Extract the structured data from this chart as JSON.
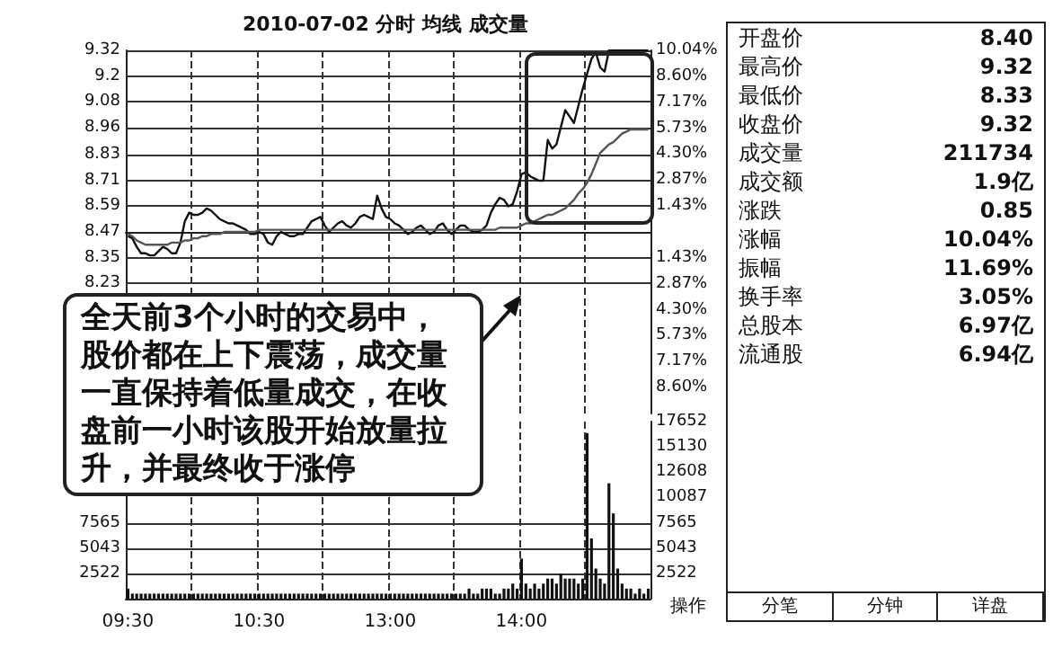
{
  "chart_data": [
    {
      "type": "line",
      "title": "2010-07-02 分时 均线 成交量",
      "annotations": [
        "全天前3个小时的交易中，股价都在上下震荡，成交量一直保持着低量成交，在收盘前一小时该股开始放量拉升，并最终收于涨停"
      ],
      "categories": [
        null,
        null,
        null,
        null,
        null,
        null,
        null,
        null,
        null,
        null,
        null,
        null,
        null,
        null,
        null,
        null,
        null,
        null,
        null,
        null,
        null,
        null,
        null,
        null,
        null,
        null,
        null,
        null,
        null,
        null,
        null,
        null,
        null,
        null,
        null,
        null,
        null,
        null,
        null,
        null,
        null,
        null,
        null,
        null,
        null,
        null,
        null,
        null,
        null,
        null,
        null,
        null,
        null,
        null,
        null,
        null,
        null,
        null,
        null,
        null,
        null,
        null,
        null,
        null,
        null,
        null,
        null,
        null,
        null,
        null,
        null,
        null,
        null,
        null,
        null,
        null,
        null,
        null,
        null,
        null,
        null,
        null,
        null,
        null,
        null,
        null,
        null,
        null,
        null,
        null,
        null,
        null,
        null,
        null,
        null,
        null,
        null,
        null,
        null,
        null,
        null,
        null,
        null,
        null,
        null,
        null,
        null,
        null,
        null,
        null,
        null,
        null,
        null,
        null,
        null,
        null,
        null,
        null,
        null,
        null
      ],
      "series": [
        {
          "color": "#111111",
          "values": [
            8.45,
            8.44,
            8.4,
            8.37,
            8.37,
            8.36,
            8.36,
            8.38,
            8.4,
            8.39,
            8.37,
            8.37,
            8.42,
            8.52,
            8.56,
            8.55,
            8.55,
            8.56,
            8.58,
            8.57,
            8.55,
            8.53,
            8.52,
            8.51,
            8.51,
            8.5,
            8.49,
            8.48,
            8.46,
            8.46,
            8.47,
            8.46,
            8.42,
            8.41,
            8.45,
            8.47,
            8.46,
            8.45,
            8.45,
            8.46,
            8.46,
            8.49,
            8.52,
            8.53,
            8.54,
            8.5,
            8.47,
            8.49,
            8.51,
            8.52,
            8.5,
            8.49,
            8.51,
            8.54,
            8.55,
            8.54,
            8.53,
            8.64,
            8.58,
            8.54,
            8.53,
            8.51,
            8.5,
            8.48,
            8.46,
            8.47,
            8.49,
            8.5,
            8.48,
            8.46,
            8.47,
            8.5,
            8.51,
            8.48,
            8.46,
            8.48,
            8.5,
            8.5,
            8.48,
            8.47,
            8.47,
            8.48,
            8.5,
            8.56,
            8.6,
            8.63,
            8.62,
            8.59,
            8.6,
            8.66,
            8.74,
            8.75,
            8.73,
            8.72,
            8.71,
            8.71,
            8.9,
            8.86,
            8.88,
            8.96,
            9.04,
            9.01,
            8.98,
            9.06,
            9.14,
            9.21,
            9.28,
            9.31,
            9.24,
            9.22,
            9.32,
            9.32,
            9.32,
            9.32,
            9.32,
            9.32,
            9.32,
            9.32,
            9.32,
            9.32
          ]
        },
        {
          "color": "#555555",
          "values": [
            8.46,
            8.45,
            8.43,
            8.42,
            8.41,
            8.41,
            8.41,
            8.41,
            8.41,
            8.41,
            8.42,
            8.42,
            8.42,
            8.43,
            8.43,
            8.44,
            8.44,
            8.45,
            8.45,
            8.46,
            8.46,
            8.46,
            8.47,
            8.47,
            8.47,
            8.47,
            8.47,
            8.47,
            8.47,
            8.47,
            8.48,
            8.48,
            8.48,
            8.48,
            8.48,
            8.48,
            8.48,
            8.48,
            8.48,
            8.48,
            8.48,
            8.48,
            8.48,
            8.48,
            8.48,
            8.48,
            8.48,
            8.48,
            8.48,
            8.48,
            8.48,
            8.48,
            8.48,
            8.48,
            8.48,
            8.48,
            8.48,
            8.48,
            8.48,
            8.48,
            8.48,
            8.48,
            8.48,
            8.48,
            8.48,
            8.48,
            8.48,
            8.48,
            8.48,
            8.48,
            8.48,
            8.48,
            8.48,
            8.48,
            8.48,
            8.48,
            8.48,
            8.48,
            8.48,
            8.48,
            8.48,
            8.48,
            8.48,
            8.48,
            8.48,
            8.49,
            8.49,
            8.49,
            8.49,
            8.49,
            8.5,
            8.51,
            8.51,
            8.52,
            8.53,
            8.54,
            8.55,
            8.55,
            8.56,
            8.57,
            8.58,
            8.6,
            8.62,
            8.65,
            8.67,
            8.7,
            8.74,
            8.79,
            8.84,
            8.86,
            8.88,
            8.89,
            8.91,
            8.93,
            8.94,
            8.95,
            8.95,
            8.95,
            8.95,
            8.95
          ]
        }
      ],
      "ylim": [
        7.62,
        9.32
      ],
      "yticks": [
        9.32,
        9.2,
        9.08,
        8.96,
        8.83,
        8.71,
        8.59,
        8.47,
        8.35,
        8.23
      ],
      "y2lim": [
        -10.04,
        10.04
      ],
      "y2ticks": [
        {
          "value": 10.04,
          "label": "10.04%"
        },
        {
          "value": 8.6,
          "label": "8.60%"
        },
        {
          "value": 7.17,
          "label": "7.17%"
        },
        {
          "value": 5.73,
          "label": "5.73%"
        },
        {
          "value": 4.3,
          "label": "4.30%"
        },
        {
          "value": 2.87,
          "label": "2.87%"
        },
        {
          "value": 1.43,
          "label": "1.43%"
        },
        {
          "value": 0,
          "label": null
        },
        {
          "value": -1.43,
          "label": "1.43%"
        },
        {
          "value": -2.87,
          "label": "2.87%"
        },
        {
          "value": -4.3,
          "label": "4.30%"
        },
        {
          "value": -5.73,
          "label": "5.73%"
        },
        {
          "value": -7.17,
          "label": "7.17%"
        },
        {
          "value": -8.6,
          "label": "8.60%"
        }
      ],
      "tick_labels": "y",
      "grid": true,
      "line_style": "solid"
    },
    {
      "type": "bar",
      "categories": [
        "09:30",
        null,
        null,
        null,
        null,
        null,
        null,
        null,
        null,
        null,
        null,
        null,
        null,
        null,
        null,
        null,
        null,
        null,
        null,
        null,
        null,
        null,
        null,
        null,
        null,
        null,
        null,
        null,
        null,
        null,
        "10:30",
        null,
        null,
        null,
        null,
        null,
        null,
        null,
        null,
        null,
        null,
        null,
        null,
        null,
        null,
        null,
        null,
        null,
        null,
        null,
        null,
        null,
        null,
        null,
        null,
        null,
        null,
        null,
        null,
        null,
        "13:00",
        null,
        null,
        null,
        null,
        null,
        null,
        null,
        null,
        null,
        null,
        null,
        null,
        null,
        null,
        null,
        null,
        null,
        null,
        null,
        null,
        null,
        null,
        null,
        null,
        null,
        null,
        null,
        null,
        null,
        "14:00",
        null,
        null,
        null,
        null,
        null,
        null,
        null,
        null,
        null,
        null,
        null,
        null,
        null,
        null,
        null,
        null,
        null,
        null,
        null,
        null,
        null,
        null,
        null,
        null,
        null,
        null,
        null,
        null,
        null
      ],
      "series": [
        {
          "color": "#111111",
          "values": [
            1000,
            500,
            500,
            500,
            500,
            500,
            500,
            500,
            500,
            500,
            500,
            500,
            500,
            500,
            500,
            500,
            500,
            500,
            500,
            500,
            500,
            500,
            500,
            500,
            500,
            500,
            500,
            500,
            500,
            500,
            500,
            500,
            500,
            500,
            500,
            500,
            500,
            500,
            500,
            500,
            500,
            500,
            500,
            500,
            500,
            500,
            500,
            500,
            500,
            500,
            500,
            500,
            500,
            500,
            500,
            500,
            500,
            500,
            500,
            500,
            500,
            500,
            500,
            500,
            500,
            500,
            500,
            500,
            500,
            500,
            500,
            500,
            500,
            500,
            500,
            500,
            500,
            500,
            1000,
            500,
            500,
            1000,
            1000,
            1000,
            500,
            500,
            1000,
            1000,
            1500,
            1000,
            4000,
            1500,
            1000,
            1500,
            1000,
            1500,
            2000,
            2000,
            1500,
            2500,
            2000,
            2000,
            2000,
            1500,
            2000,
            16500,
            6000,
            3000,
            2000,
            1500,
            11500,
            8500,
            3000,
            1500,
            1000,
            1000,
            500,
            1000,
            500,
            1000
          ]
        }
      ],
      "ylim": [
        0,
        17652
      ],
      "yticks": [
        2522,
        5043,
        7565
      ],
      "y2lim": [
        0,
        17652
      ],
      "y2ticks": [
        2522,
        5043,
        7565,
        10087,
        12608,
        15130,
        17652
      ],
      "grid": true
    },
    {
      "type": "other",
      "categories": [
        "开盘价",
        "最高价",
        "最低价",
        "收盘价",
        "成交量",
        "成交额",
        "涨跌",
        "涨幅",
        "振幅",
        "换手率",
        "总股本",
        "流通股"
      ],
      "value_labels": [
        "8.40",
        "9.32",
        "8.33",
        "9.32",
        "211734",
        "1.9亿",
        "0.85",
        "10.04%",
        "11.69%",
        "3.05%",
        "6.97亿",
        "6.94亿"
      ],
      "annotations": [
        "操作",
        "分笔",
        "分钟",
        "详盘"
      ]
    }
  ]
}
